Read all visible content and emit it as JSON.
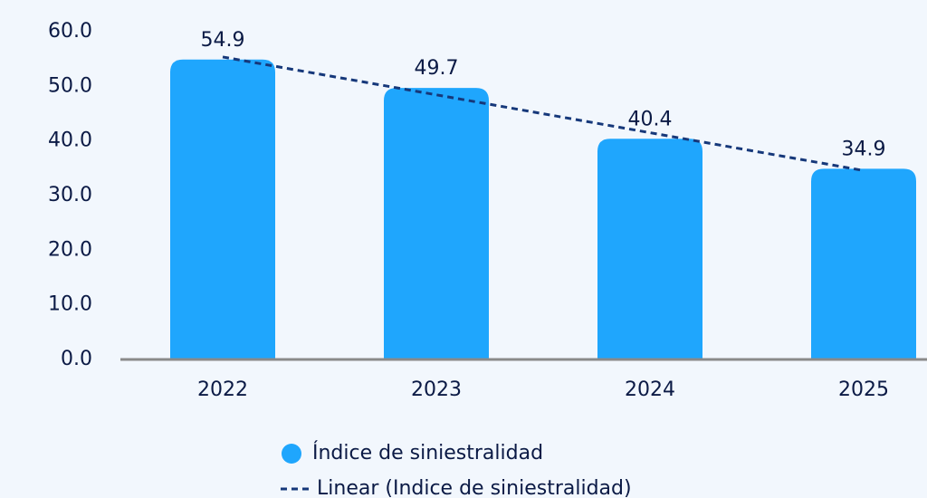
{
  "chart_data": {
    "type": "bar",
    "categories": [
      "2022",
      "2023",
      "2024",
      "2025"
    ],
    "series": [
      {
        "name": "Índice de siniestralidad",
        "color": "#1fa6fd",
        "values": [
          54.9,
          49.7,
          40.4,
          34.9
        ]
      }
    ],
    "trendline": {
      "name": "Linear (Indice de siniestralidad)",
      "color": "#16387a",
      "kind": "linear"
    },
    "ylim": [
      0,
      60
    ],
    "yticks": [
      {
        "value": 0,
        "label": "0.0"
      },
      {
        "value": 10,
        "label": "10.0"
      },
      {
        "value": 20,
        "label": "20.0"
      },
      {
        "value": 30,
        "label": "30.0"
      },
      {
        "value": 40,
        "label": "40.0"
      },
      {
        "value": 50,
        "label": "50.0"
      },
      {
        "value": 60,
        "label": "60.0"
      }
    ],
    "grid": false,
    "legend": "bottom"
  }
}
